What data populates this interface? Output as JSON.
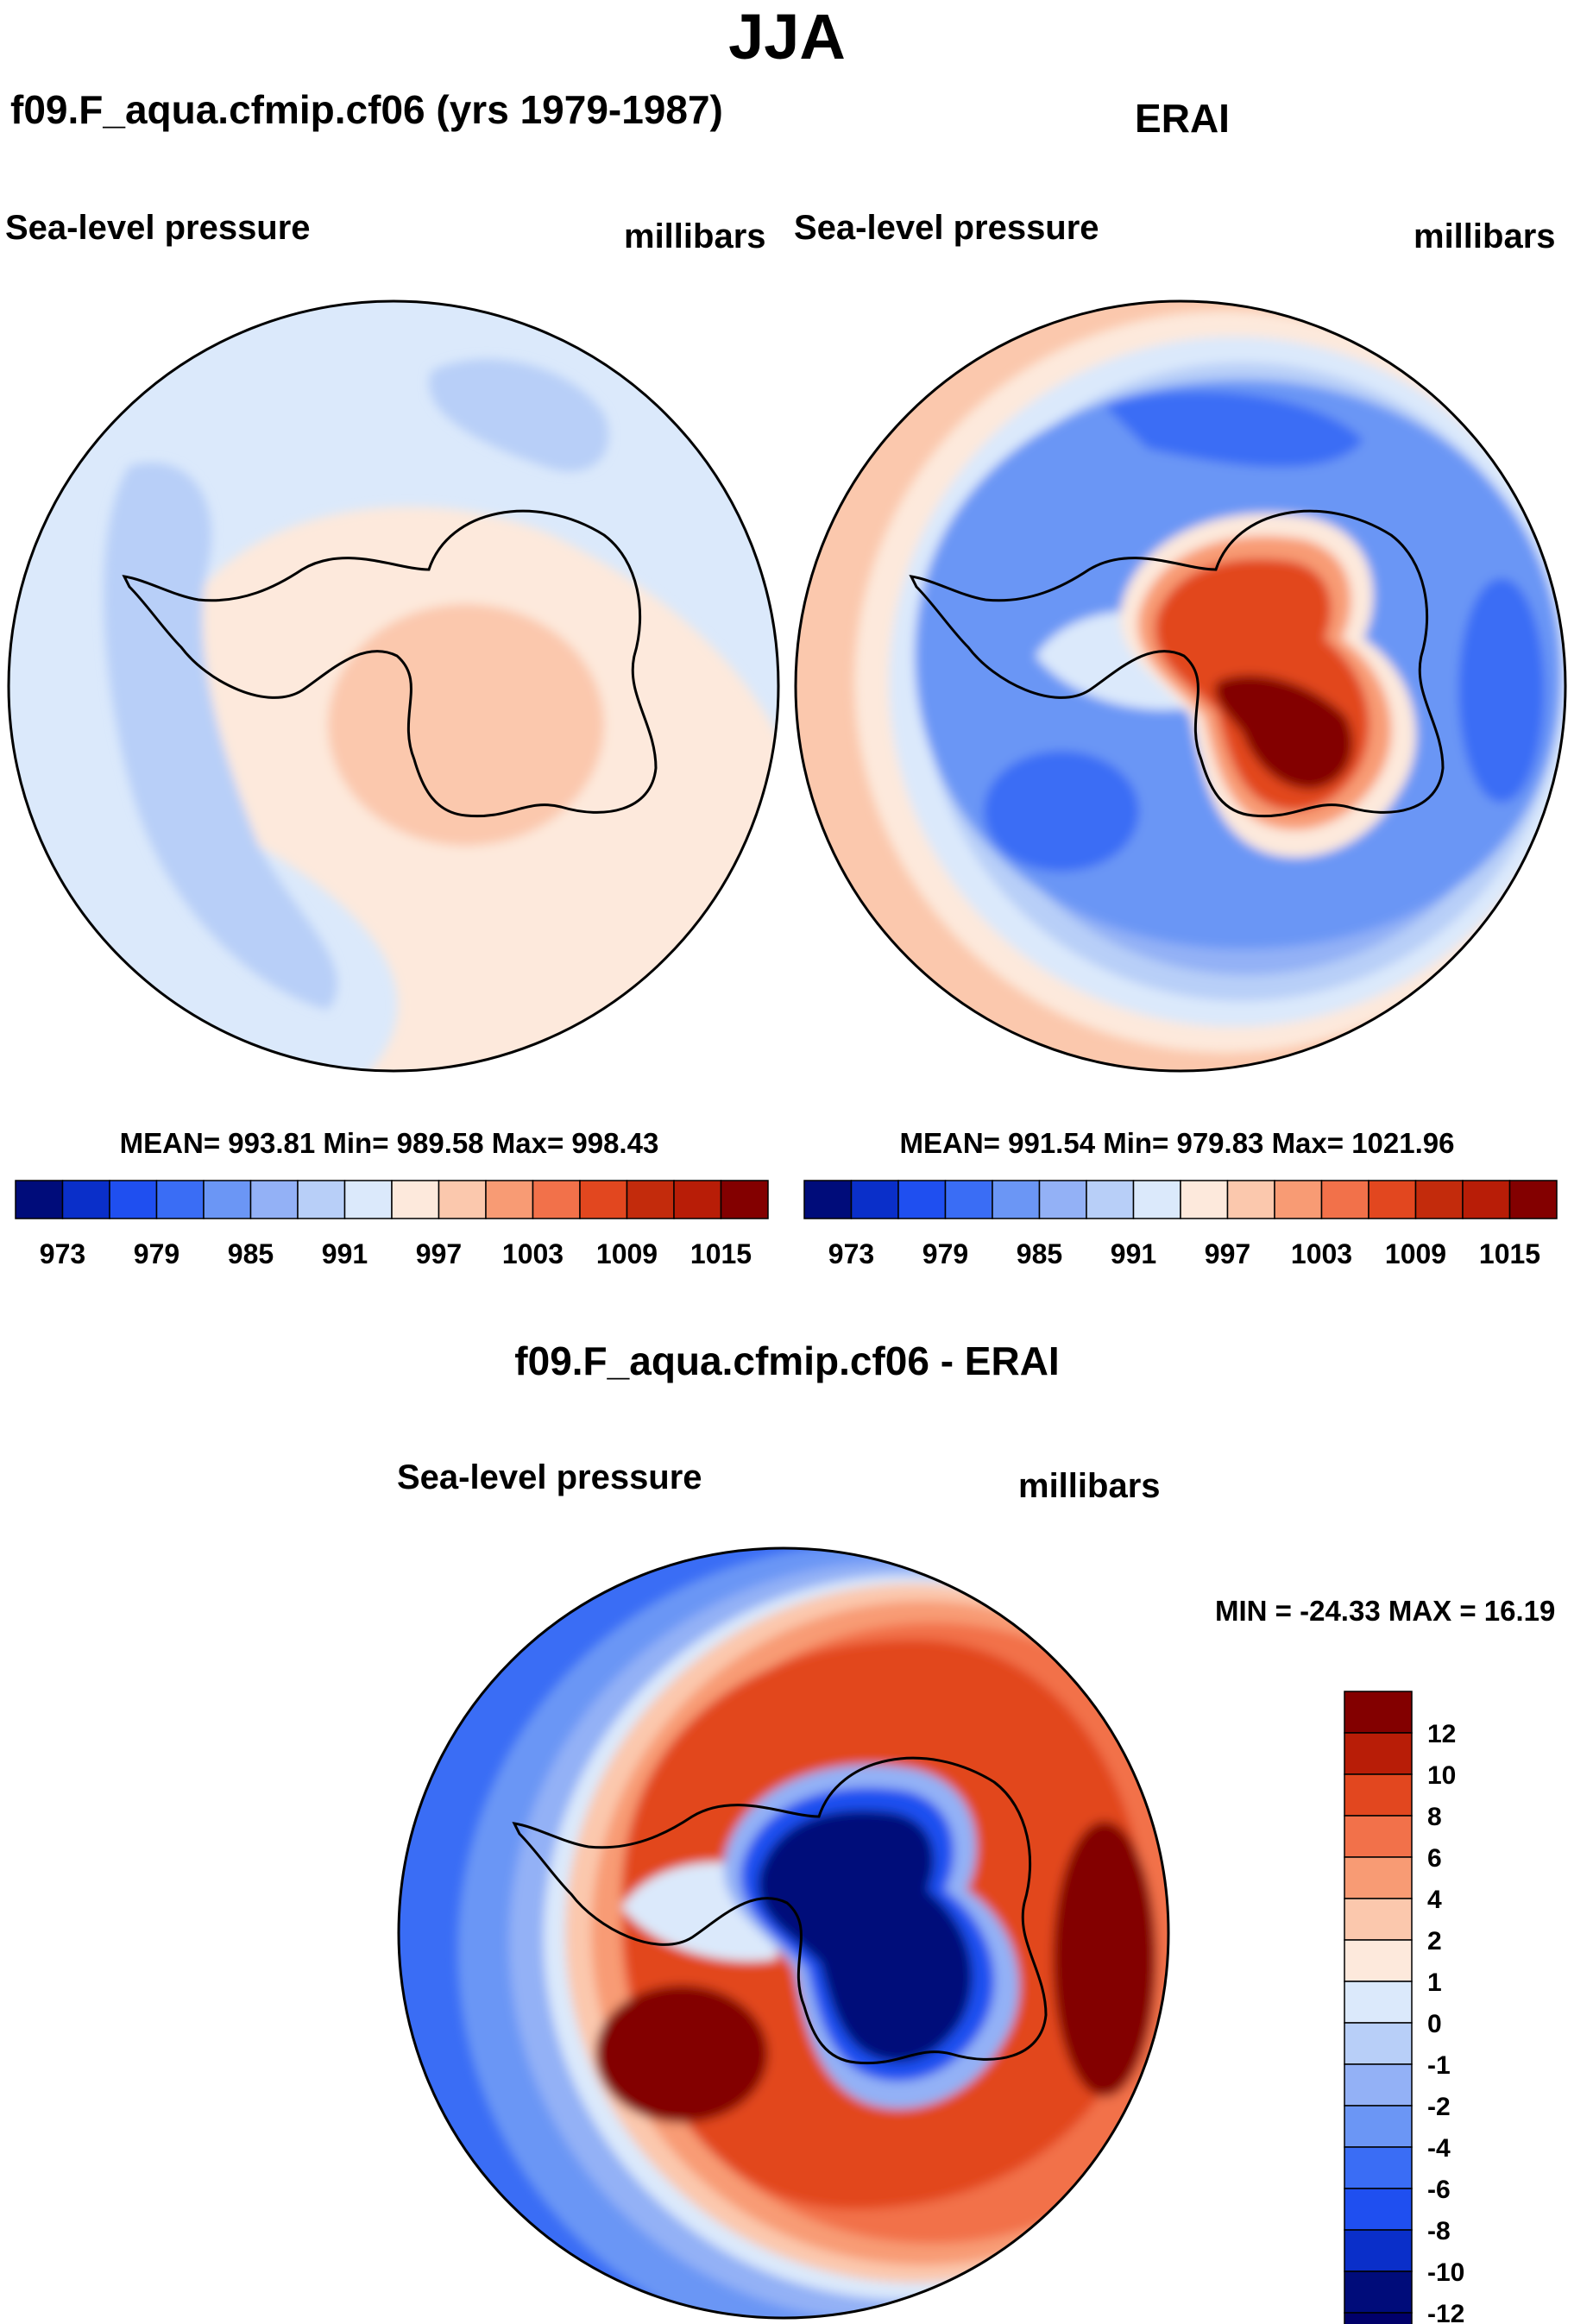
{
  "figure": {
    "season": "JJA"
  },
  "panels": {
    "model": {
      "title": "f09.F_aqua.cfmip.cf06 (yrs 1979-1987)",
      "left_label": "Sea-level pressure",
      "right_label": "millibars",
      "stats": "MEAN= 993.81  Min= 989.58  Max= 998.43"
    },
    "obs": {
      "title": "ERAI",
      "left_label": "Sea-level pressure",
      "right_label": "millibars",
      "stats": "MEAN= 991.54  Min= 979.83  Max= 1021.96"
    },
    "diff": {
      "title": "f09.F_aqua.cfmip.cf06 - ERAI",
      "left_label": "Sea-level pressure",
      "right_label": "millibars",
      "stats": "MIN = -24.33 MAX =  16.19"
    }
  },
  "colorbars": {
    "abs_labels": [
      "973",
      "979",
      "985",
      "991",
      "997",
      "1003",
      "1009",
      "1015"
    ],
    "abs_colors": [
      "#000c7a",
      "#0a2fc9",
      "#1f4ff0",
      "#3a6df5",
      "#6b96f5",
      "#93b1f6",
      "#b8cff8",
      "#dbe9fb",
      "#fde9dc",
      "#fbc8ad",
      "#f89b74",
      "#f2714a",
      "#e2471f",
      "#c32b0c",
      "#b81d07",
      "#830000"
    ],
    "diff_labels": [
      "12",
      "10",
      "8",
      "6",
      "4",
      "2",
      "1",
      "0",
      "-1",
      "-2",
      "-4",
      "-6",
      "-8",
      "-10",
      "-12"
    ],
    "diff_colors": [
      "#830000",
      "#b81d07",
      "#e2471f",
      "#f2714a",
      "#f89b74",
      "#fbc8ad",
      "#fde9dc",
      "#dbe9fb",
      "#b8cff8",
      "#93b1f6",
      "#6b96f5",
      "#3a6df5",
      "#1f4ff0",
      "#0a2fc9",
      "#000c7a",
      "#00006a"
    ]
  }
}
